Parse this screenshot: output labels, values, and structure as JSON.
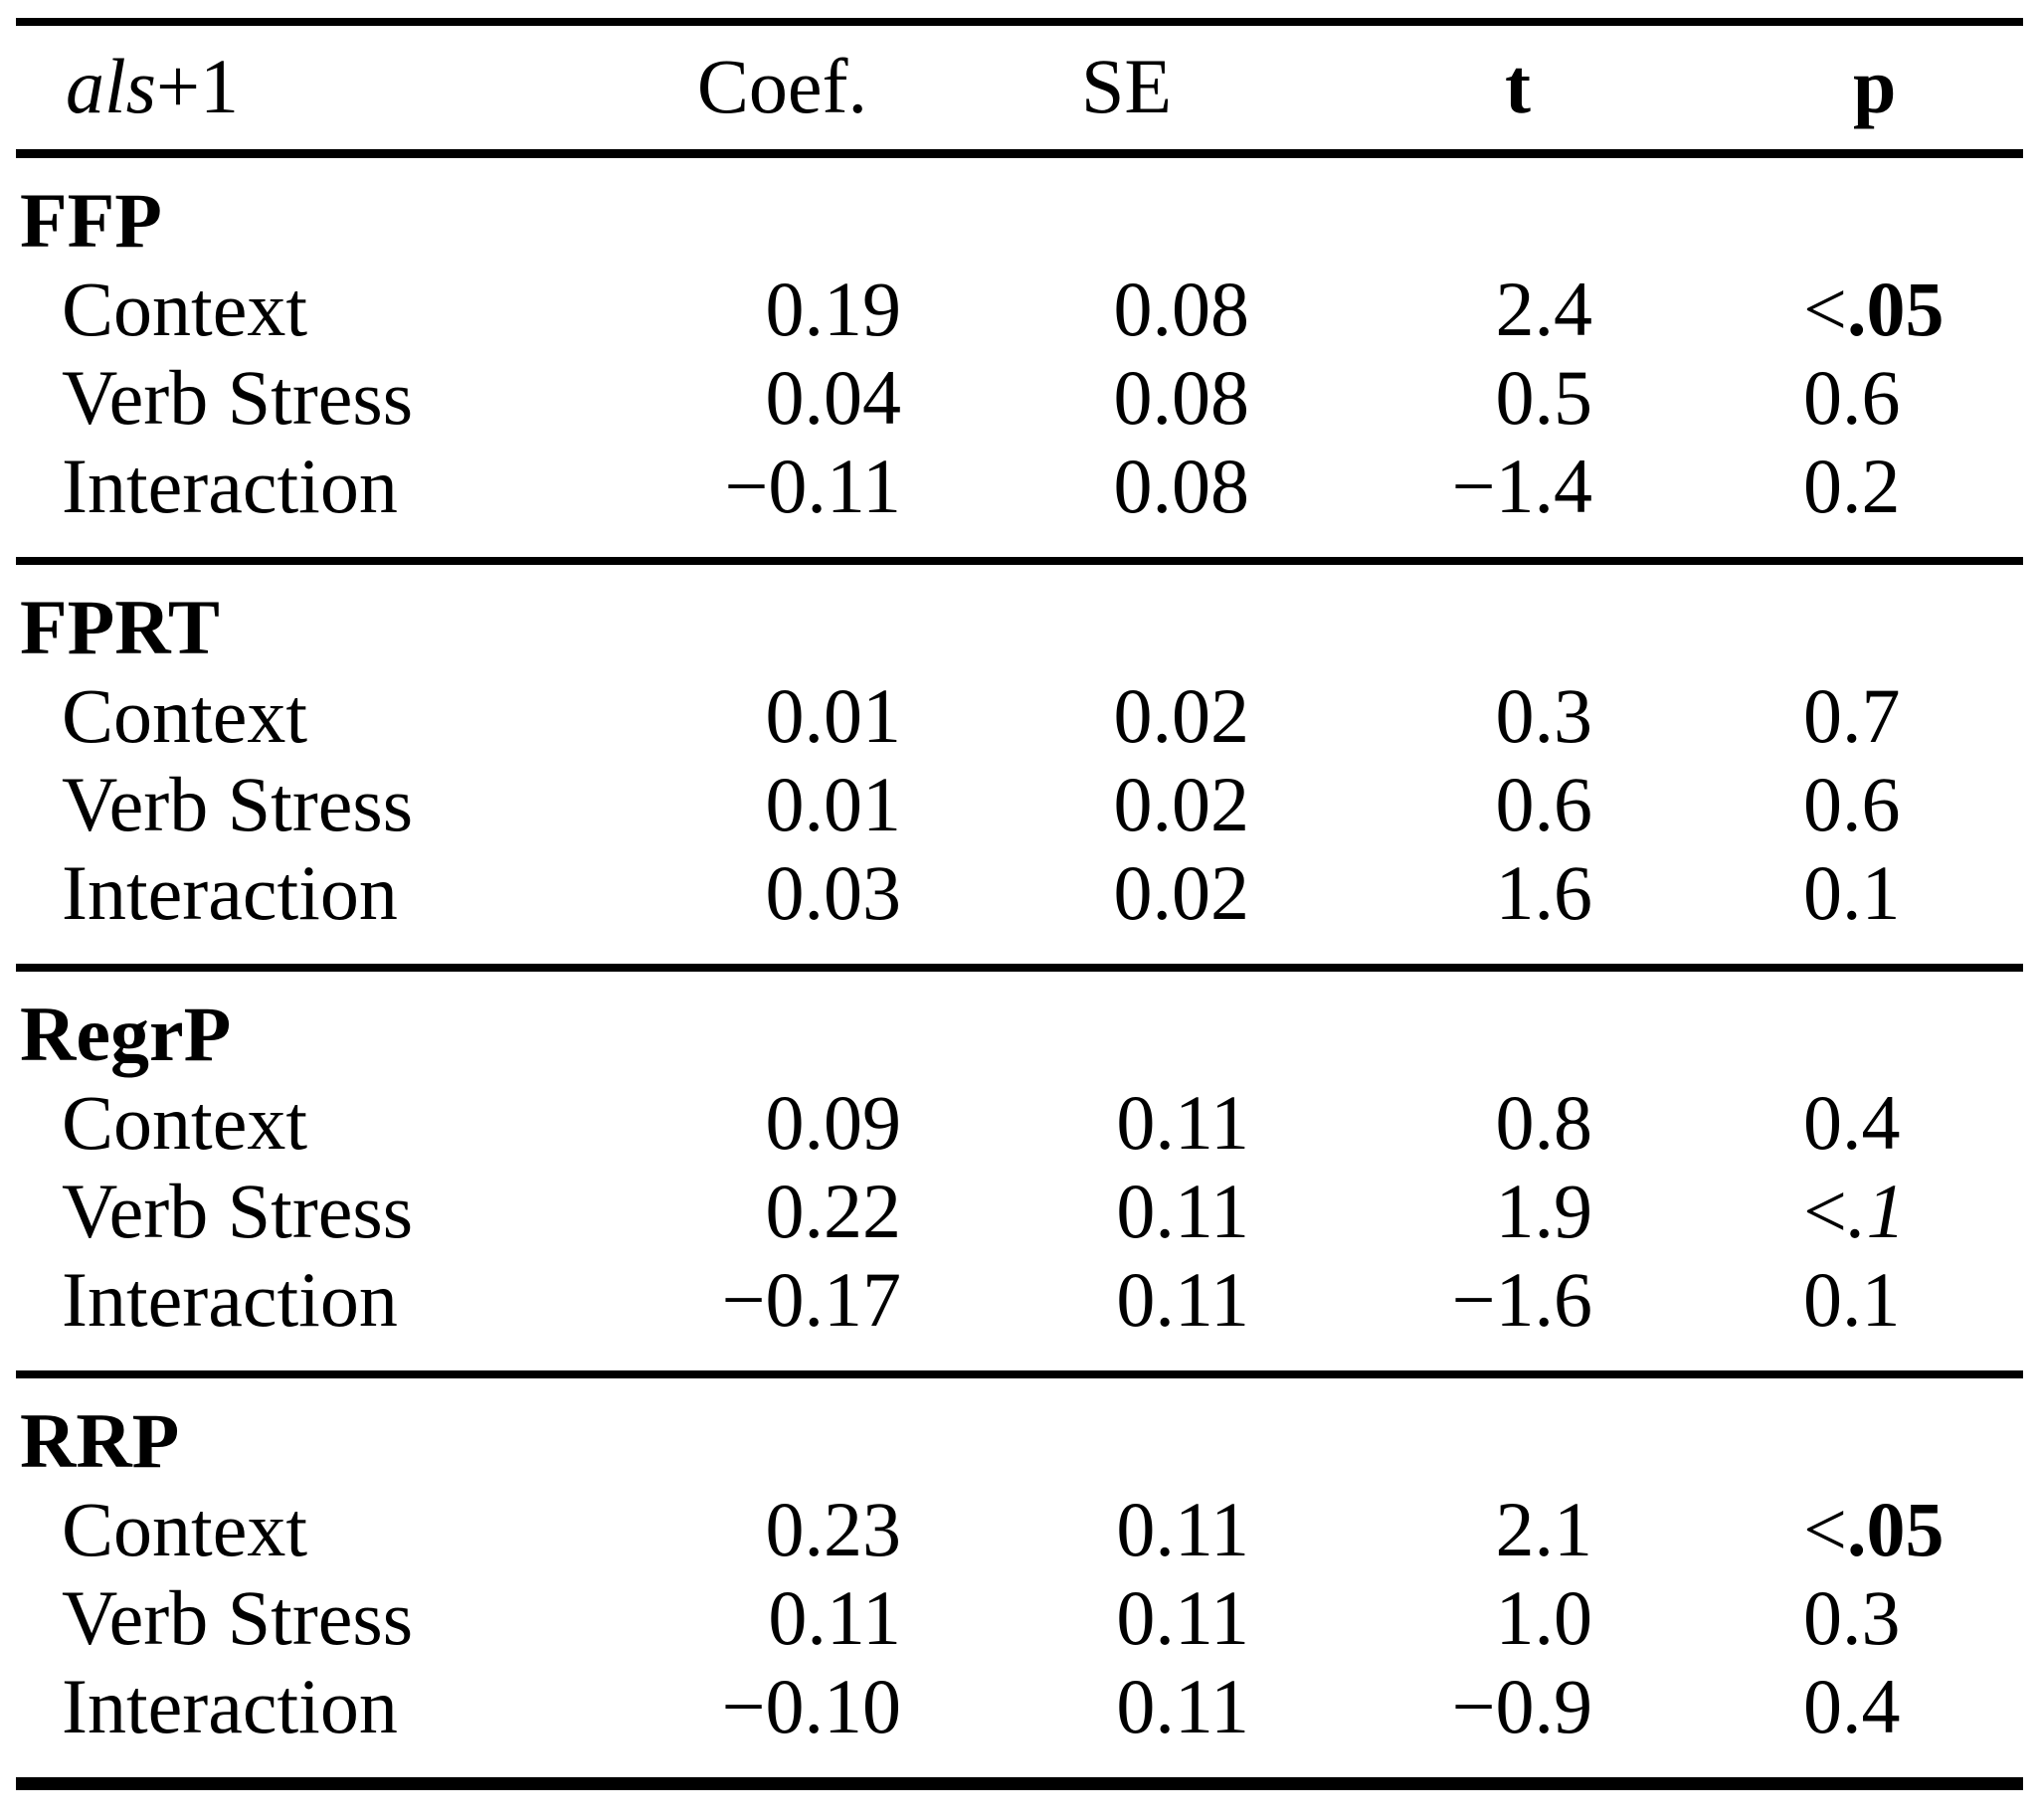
{
  "table": {
    "header": {
      "row_label_italic": "als",
      "row_label_rest": "+1",
      "coef": "Coef.",
      "se": "SE",
      "t": "t",
      "p": "p"
    },
    "sections": [
      {
        "name": "FFP",
        "rows": [
          {
            "label": "Context",
            "coef": "0.19",
            "se": "0.08",
            "t": "2.4",
            "p_prefix": "<",
            "p": ".05",
            "p_style": "bold"
          },
          {
            "label": "Verb Stress",
            "coef": "0.04",
            "se": "0.08",
            "t": "0.5",
            "p_prefix": "",
            "p": "0.6",
            "p_style": "normal"
          },
          {
            "label": "Interaction",
            "coef": "−0.11",
            "se": "0.08",
            "t": "−1.4",
            "p_prefix": "",
            "p": "0.2",
            "p_style": "normal"
          }
        ]
      },
      {
        "name": "FPRT",
        "rows": [
          {
            "label": "Context",
            "coef": "0.01",
            "se": "0.02",
            "t": "0.3",
            "p_prefix": "",
            "p": "0.7",
            "p_style": "normal"
          },
          {
            "label": "Verb Stress",
            "coef": "0.01",
            "se": "0.02",
            "t": "0.6",
            "p_prefix": "",
            "p": "0.6",
            "p_style": "normal"
          },
          {
            "label": "Interaction",
            "coef": "0.03",
            "se": "0.02",
            "t": "1.6",
            "p_prefix": "",
            "p": "0.1",
            "p_style": "normal"
          }
        ]
      },
      {
        "name": "RegrP",
        "rows": [
          {
            "label": "Context",
            "coef": "0.09",
            "se": "0.11",
            "t": "0.8",
            "p_prefix": "",
            "p": "0.4",
            "p_style": "normal"
          },
          {
            "label": "Verb Stress",
            "coef": "0.22",
            "se": "0.11",
            "t": "1.9",
            "p_prefix": "<",
            "p": ".1",
            "p_style": "italic"
          },
          {
            "label": "Interaction",
            "coef": "−0.17",
            "se": "0.11",
            "t": "−1.6",
            "p_prefix": "",
            "p": "0.1",
            "p_style": "normal"
          }
        ]
      },
      {
        "name": "RRP",
        "rows": [
          {
            "label": "Context",
            "coef": "0.23",
            "se": "0.11",
            "t": "2.1",
            "p_prefix": "<",
            "p": ".05",
            "p_style": "bold"
          },
          {
            "label": "Verb Stress",
            "coef": "0.11",
            "se": "0.11",
            "t": "1.0",
            "p_prefix": "",
            "p": "0.3",
            "p_style": "normal"
          },
          {
            "label": "Interaction",
            "coef": "−0.10",
            "se": "0.11",
            "t": "−0.9",
            "p_prefix": "",
            "p": "0.4",
            "p_style": "normal"
          }
        ]
      }
    ],
    "colors": {
      "text": "#000000",
      "background": "#ffffff",
      "rule": "#000000"
    }
  }
}
